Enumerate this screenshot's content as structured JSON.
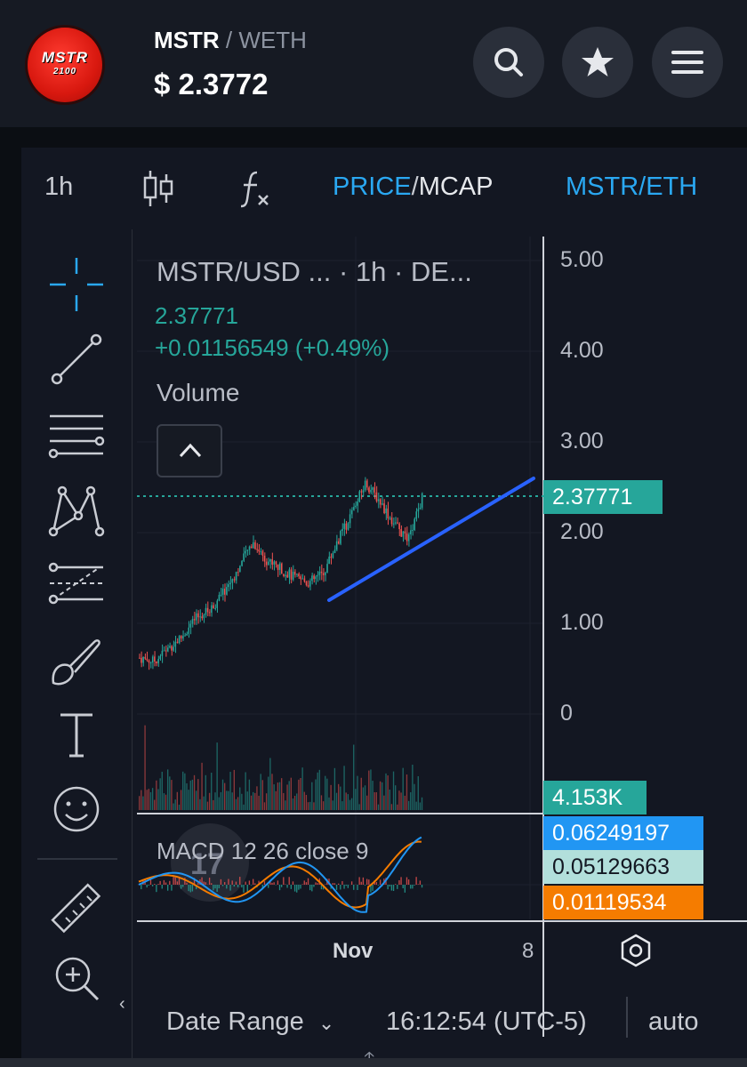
{
  "header": {
    "logo_text": "MSTR",
    "logo_sub": "2100",
    "base": "MSTR",
    "separator": "/",
    "quote": "WETH",
    "price": "$  2.3772",
    "buttons": [
      "search-icon",
      "star-icon",
      "menu-icon"
    ]
  },
  "toolbar": {
    "interval": "1h",
    "price_label": "PRICE",
    "price_sep": "/",
    "mcap_label": "MCAP",
    "pair_label": "MSTR/ETH"
  },
  "side_tools": [
    "crosshair-icon",
    "trend-line-icon",
    "fib-levels-icon",
    "pattern-icon",
    "prediction-icon",
    "brush-icon",
    "text-icon",
    "emoji-icon",
    "ruler-icon",
    "zoom-in-icon"
  ],
  "legend": {
    "title": "MSTR/USD ...  · 1h · DE...",
    "price": "2.37771",
    "change": "+0.01156549 (+0.49%)",
    "volume": "Volume",
    "macd": "MACD 12 26 close 9"
  },
  "price_axis": [
    "5.00",
    "4.00",
    "3.00",
    "2.00",
    "1.00",
    "0"
  ],
  "tags": {
    "price": "2.37771",
    "volume": "4.153K",
    "macd": "0.06249197",
    "signal": "0.05129663",
    "histogram": "0.01119534"
  },
  "time_axis": {
    "nov": "Nov",
    "eight": "8"
  },
  "bottom": {
    "date_range": "Date Range",
    "time": "16:12:54 (UTC-5)",
    "auto": "auto"
  },
  "colors": {
    "up": "#26a69a",
    "down": "#ef5350",
    "trendline": "#2962ff",
    "accent": "#2aa8f2",
    "macd": "#2196f3",
    "signal": "#f57c00"
  },
  "chart_data": {
    "type": "line",
    "ylim": [
      0,
      5
    ],
    "x": [
      0,
      5,
      10,
      15,
      20,
      25,
      30,
      35,
      40,
      45,
      50,
      55,
      60,
      65,
      70,
      75,
      80,
      85,
      90,
      95,
      100
    ],
    "series": [
      {
        "values": [
          0.62,
          0.58,
          0.72,
          0.85,
          1.05,
          1.15,
          1.35,
          1.6,
          1.9,
          1.7,
          1.6,
          1.5,
          1.45,
          1.55,
          1.9,
          2.2,
          2.55,
          2.35,
          2.1,
          1.9,
          2.38
        ]
      }
    ]
  }
}
